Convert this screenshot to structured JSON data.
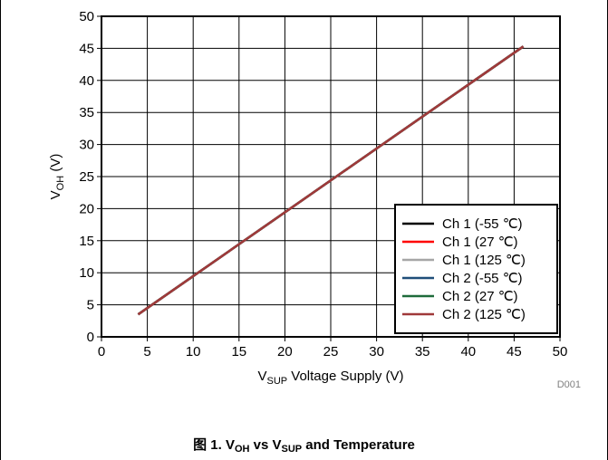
{
  "caption": {
    "prefix": "图 1. V",
    "sub1": "OH",
    "mid": " vs V",
    "sub2": "SUP",
    "suffix": " and Temperature"
  },
  "figure_code": "D001",
  "chart_data": {
    "type": "line",
    "xlabel": {
      "main": "V",
      "sub": "SUP",
      "rest": " Voltage Supply (V)"
    },
    "ylabel": {
      "main": "V",
      "sub": "OH",
      "rest": " (V)"
    },
    "xlim": [
      0,
      50
    ],
    "ylim": [
      0,
      50
    ],
    "xticks": [
      0,
      5,
      10,
      15,
      20,
      25,
      30,
      35,
      40,
      45,
      50
    ],
    "yticks": [
      0,
      5,
      10,
      15,
      20,
      25,
      30,
      35,
      40,
      45,
      50
    ],
    "grid": true,
    "legend_position": "bottom-right",
    "series": [
      {
        "name": "Ch 1 (-55 ℃)",
        "color": "#000000",
        "x": [
          4,
          46
        ],
        "y": [
          3.5,
          45.3
        ]
      },
      {
        "name": "Ch 1 (27 ℃)",
        "color": "#ff0000",
        "x": [
          4,
          46
        ],
        "y": [
          3.5,
          45.3
        ]
      },
      {
        "name": "Ch 1 (125 ℃)",
        "color": "#a6a6a6",
        "x": [
          4,
          46
        ],
        "y": [
          3.5,
          45.3
        ]
      },
      {
        "name": "Ch 2 (-55 ℃)",
        "color": "#1f4e79",
        "x": [
          4,
          46
        ],
        "y": [
          3.5,
          45.3
        ]
      },
      {
        "name": "Ch 2 (27 ℃)",
        "color": "#1e6b3a",
        "x": [
          4,
          46
        ],
        "y": [
          3.5,
          45.3
        ]
      },
      {
        "name": "Ch 2 (125 ℃)",
        "color": "#a0393a",
        "x": [
          4,
          46
        ],
        "y": [
          3.5,
          45.3
        ]
      }
    ]
  }
}
